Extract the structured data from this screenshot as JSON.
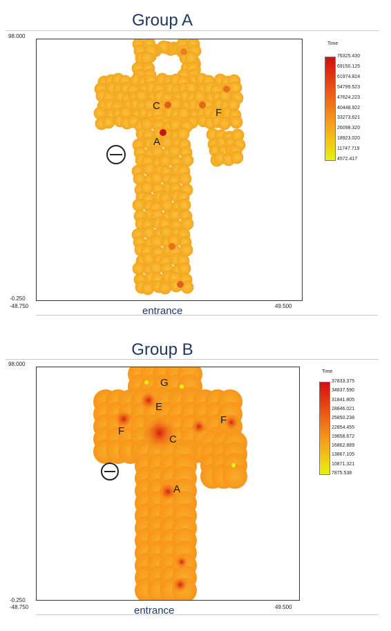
{
  "chart_data": [
    {
      "type": "heatmap",
      "title": "Group A",
      "x_min_label": "-48.750",
      "x_max_label": "49.500",
      "y_max_label": "98.000",
      "y_min_label": "-0.250",
      "xlabel": "entrance",
      "legend_title": "Time",
      "legend_values": [
        "76325.430",
        "69150.125",
        "61974.824",
        "54799.523",
        "47624.223",
        "40448.922",
        "33273.621",
        "26098.320",
        "18923.020",
        "11747.719",
        "4572.417"
      ],
      "zone_labels": [
        "C",
        "F",
        "A"
      ],
      "colors": {
        "high": "#d11010",
        "mid": "#f6a11a",
        "low": "#e8f210"
      }
    },
    {
      "type": "heatmap",
      "title": "Group B",
      "x_min_label": "-48.750",
      "x_max_label": "49.500",
      "y_max_label": "98.000",
      "y_min_label": "-0.250",
      "xlabel": "entrance",
      "legend_title": "Time",
      "legend_values": [
        "37833.375",
        "34837.590",
        "31841.805",
        "28846.021",
        "25850.238",
        "22854.455",
        "19858.672",
        "16862.889",
        "13867.105",
        "10871.321",
        "7875.538"
      ],
      "zone_labels": [
        "G",
        "E",
        "F",
        "C",
        "F",
        "A"
      ],
      "colors": {
        "high": "#d11010",
        "mid": "#f6a11a",
        "low": "#e8f210"
      }
    }
  ]
}
